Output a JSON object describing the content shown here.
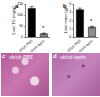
{
  "chart_data": [
    {
      "type": "bar",
      "panel": "a",
      "ylabel": "Liver TG (mg/g)",
      "categories": [
        "ob/ob PBS",
        "ob/ob leptin"
      ],
      "values": [
        130,
        15
      ],
      "errors": [
        8,
        3
      ],
      "colors": [
        "#000000",
        "#8c8c8c"
      ],
      "ylim": [
        0,
        150
      ],
      "yticks": [
        0,
        50,
        100,
        150
      ],
      "annotations": [
        {
          "category": "ob/ob leptin",
          "text": "*"
        }
      ]
    },
    {
      "type": "bar",
      "panel": "b",
      "ylabel": "Liver mass (g)",
      "categories": [
        "ob/ob PBS",
        "ob/ob leptin"
      ],
      "values": [
        3.3,
        1.2
      ],
      "errors": [
        0.2,
        0.1
      ],
      "colors": [
        "#000000",
        "#8c8c8c"
      ],
      "ylim": [
        0,
        4
      ],
      "yticks": [
        0,
        1,
        2,
        3,
        4
      ],
      "annotations": [
        {
          "category": "ob/ob leptin",
          "text": "*"
        }
      ]
    }
  ],
  "images": [
    {
      "panel": "c",
      "caption": "ob/ob PBS"
    },
    {
      "panel": "d",
      "caption": "ob/ob leptin"
    }
  ]
}
